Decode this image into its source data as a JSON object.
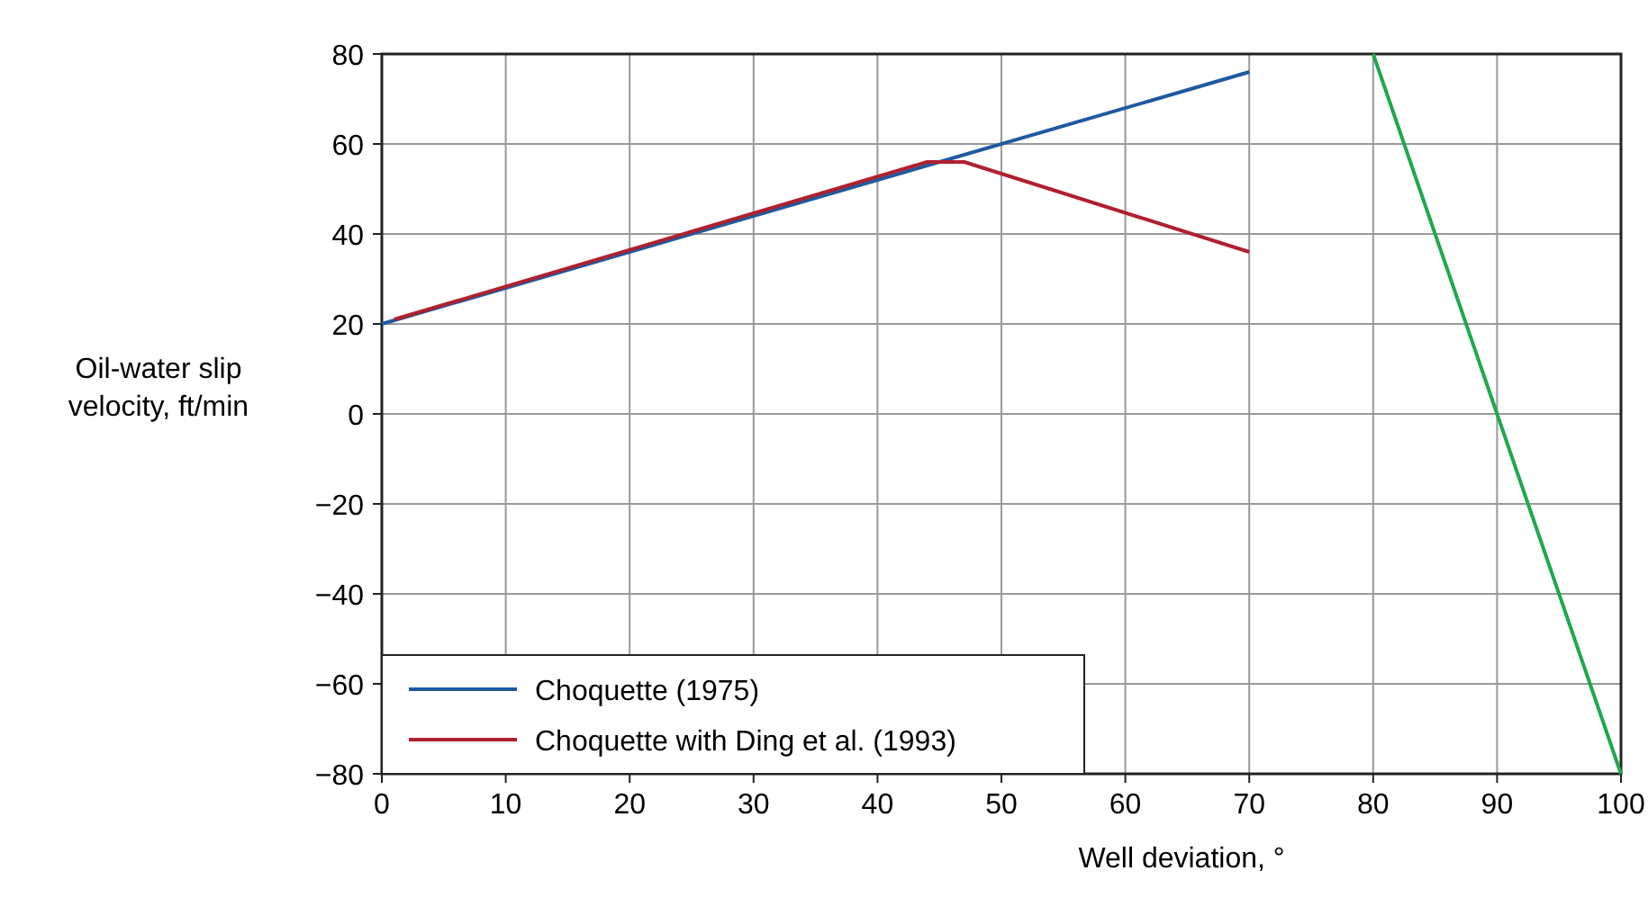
{
  "chart_data": {
    "type": "line",
    "xlabel": "Well deviation, °",
    "ylabel": "Oil-water slip\nvelocity, ft/min",
    "xlim": [
      0,
      100
    ],
    "xticks": [
      0,
      10,
      20,
      30,
      40,
      50,
      60,
      70,
      80,
      90,
      100
    ],
    "ylim": [
      -80,
      80
    ],
    "yticks": [
      {
        "value": -80,
        "label": "−80"
      },
      {
        "value": -60,
        "label": "−60"
      },
      {
        "value": -40,
        "label": "−40"
      },
      {
        "value": -20,
        "label": "−20"
      },
      0,
      20,
      40,
      60,
      80
    ],
    "grid": true,
    "legend": "bottom left",
    "line_style": "solid",
    "series": [
      {
        "name": "Choquette (1975)",
        "color": "#1f5aa0",
        "x": [
          0,
          70
        ],
        "values": [
          20,
          76
        ]
      },
      {
        "name": "Choquette with Ding et al. (1993)",
        "color": "#b0202e",
        "x": [
          1,
          44,
          47,
          70
        ],
        "values": [
          21,
          56,
          56,
          36
        ]
      },
      {
        "color": "#1fa84f",
        "x": [
          80,
          100
        ],
        "values": [
          80,
          -80
        ]
      }
    ]
  }
}
